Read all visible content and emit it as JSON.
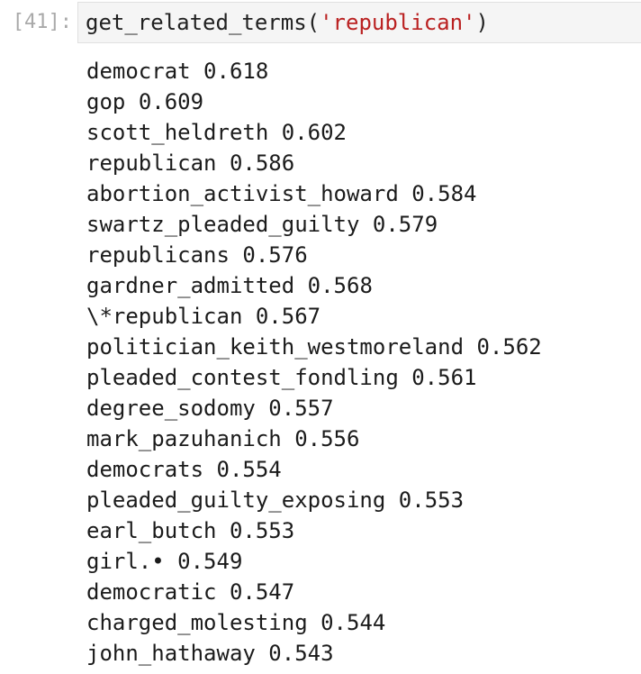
{
  "cell": {
    "prompt": "[41]:",
    "code": {
      "func": "get_related_terms(",
      "arg": "'republican'",
      "close": ")"
    }
  },
  "output": [
    {
      "term": "democrat",
      "score": "0.618"
    },
    {
      "term": "gop",
      "score": "0.609"
    },
    {
      "term": "scott_heldreth",
      "score": "0.602"
    },
    {
      "term": "republican",
      "score": "0.586"
    },
    {
      "term": "abortion_activist_howard",
      "score": "0.584"
    },
    {
      "term": "swartz_pleaded_guilty",
      "score": "0.579"
    },
    {
      "term": "republicans",
      "score": "0.576"
    },
    {
      "term": "gardner_admitted",
      "score": "0.568"
    },
    {
      "term": "\\*republican",
      "score": "0.567"
    },
    {
      "term": "politician_keith_westmoreland",
      "score": "0.562"
    },
    {
      "term": "pleaded_contest_fondling",
      "score": "0.561"
    },
    {
      "term": "degree_sodomy",
      "score": "0.557"
    },
    {
      "term": "mark_pazuhanich",
      "score": "0.556"
    },
    {
      "term": "democrats",
      "score": "0.554"
    },
    {
      "term": "pleaded_guilty_exposing",
      "score": "0.553"
    },
    {
      "term": "earl_butch",
      "score": "0.553"
    },
    {
      "term": "girl.•",
      "score": "0.549"
    },
    {
      "term": "democratic",
      "score": "0.547"
    },
    {
      "term": "charged_molesting",
      "score": "0.544"
    },
    {
      "term": "john_hathaway",
      "score": "0.543"
    }
  ]
}
